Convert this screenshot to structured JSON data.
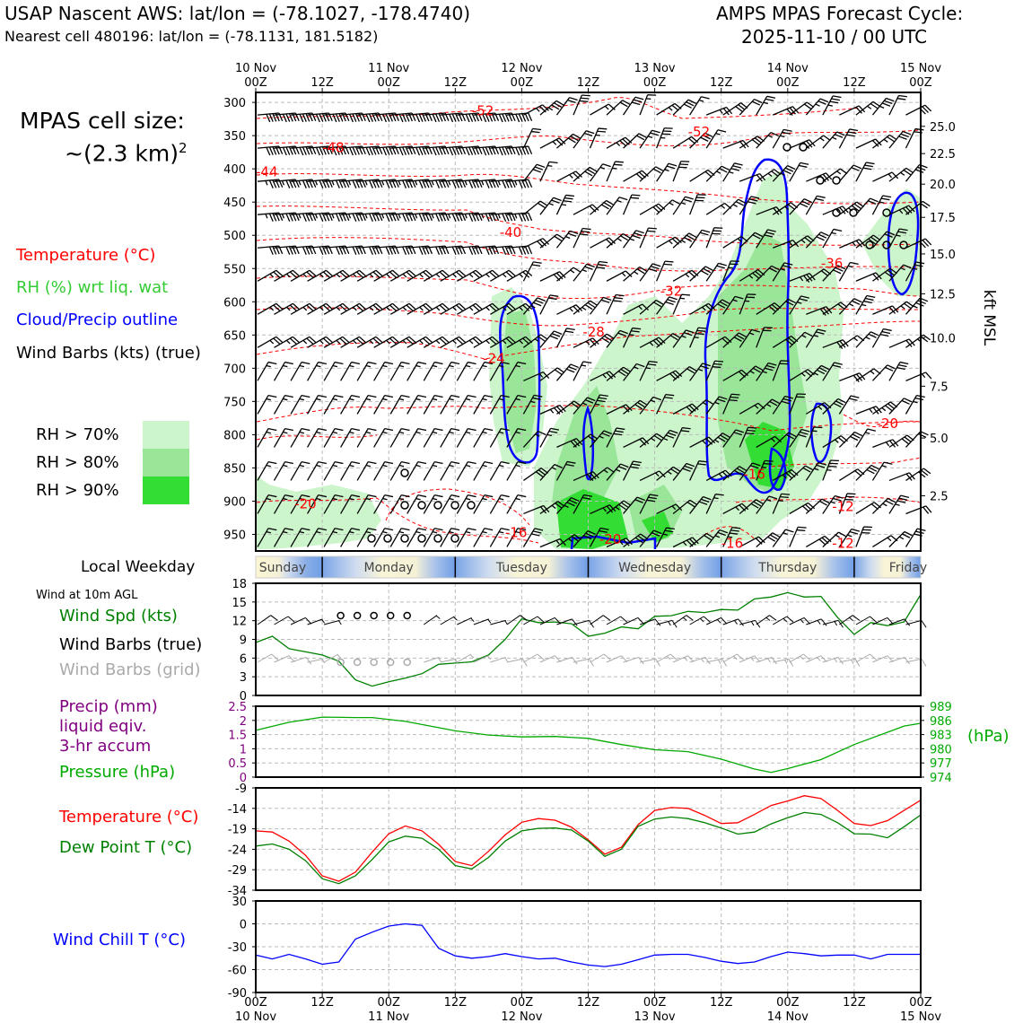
{
  "header": {
    "title": "USAP Nascent AWS: lat/lon = (-78.1027, -178.4740)",
    "subtitle": "Nearest cell 480196: lat/lon = (-78.1131, 181.5182)",
    "cycle_title": "AMPS MPAS Forecast Cycle:",
    "cycle_date": "2025-11-10 / 00 UTC"
  },
  "cell_size": {
    "label": "MPAS cell size:",
    "value": "~(2.3 km)",
    "exponent": "2"
  },
  "legend": {
    "temperature": "Temperature (°C)",
    "rh": "RH (%) wrt liq. wat",
    "cloud": "Cloud/Precip outline",
    "wind": "Wind Barbs (kts) (true)",
    "rh70": "RH > 70%",
    "rh80": "RH > 80%",
    "rh90": "RH > 90%"
  },
  "colors": {
    "temperature": "#ff0000",
    "rh_text": "#33cc33",
    "cloud": "#0000ff",
    "rh70": "#ccf5cc",
    "rh80": "#99e699",
    "rh90": "#33dd33",
    "wind_speed": "#008000",
    "pressure": "#00aa00",
    "precip": "#800080",
    "dew_point": "#008000",
    "wind_chill": "#0000ff",
    "grid_barbs": "#aaaaaa"
  },
  "weekday": {
    "label": "Local Weekday",
    "days": [
      "Sunday",
      "Monday",
      "Tuesday",
      "Wednesday",
      "Thursday",
      "Friday"
    ]
  },
  "surface_labels": {
    "wind_level": "Wind at 10m AGL",
    "wind_spd": "Wind Spd (kts)",
    "barbs_true": "Wind Barbs (true)",
    "barbs_grid": "Wind Barbs (grid)",
    "precip1": "Precip (mm)",
    "precip2": "liquid eqiv.",
    "precip3": "3-hr accum",
    "pressure": "Pressure (hPa)",
    "pressure_unit": "(hPa)",
    "temp": "Temperature (°C)",
    "dewpt": "Dew Point T (°C)",
    "windchill": "Wind Chill T (°C)"
  },
  "chart_data": [
    {
      "type": "time-height",
      "title": "Vertical profile",
      "time_ticks_top": [
        {
          "hour": 0,
          "l1": "10 Nov",
          "l2": "00Z"
        },
        {
          "hour": 12,
          "l1": "",
          "l2": "12Z"
        },
        {
          "hour": 24,
          "l1": "11 Nov",
          "l2": "00Z"
        },
        {
          "hour": 36,
          "l1": "",
          "l2": "12Z"
        },
        {
          "hour": 48,
          "l1": "12 Nov",
          "l2": "00Z"
        },
        {
          "hour": 60,
          "l1": "",
          "l2": "12Z"
        },
        {
          "hour": 72,
          "l1": "13 Nov",
          "l2": "00Z"
        },
        {
          "hour": 84,
          "l1": "",
          "l2": "12Z"
        },
        {
          "hour": 96,
          "l1": "14 Nov",
          "l2": "00Z"
        },
        {
          "hour": 108,
          "l1": "",
          "l2": "12Z"
        },
        {
          "hour": 120,
          "l1": "15 Nov",
          "l2": "00Z"
        }
      ],
      "xlim_hours": [
        0,
        120
      ],
      "ylim_hPa": [
        975,
        285
      ],
      "pressure_ticks": [
        300,
        350,
        400,
        450,
        500,
        550,
        600,
        650,
        700,
        750,
        800,
        850,
        900,
        950
      ],
      "kft_ticks": [
        {
          "p": 336,
          "label": "25.0"
        },
        {
          "p": 377,
          "label": "22.5"
        },
        {
          "p": 423,
          "label": "20.0"
        },
        {
          "p": 473,
          "label": "17.5"
        },
        {
          "p": 528,
          "label": "15.0"
        },
        {
          "p": 588,
          "label": "12.5"
        },
        {
          "p": 654,
          "label": "10.0"
        },
        {
          "p": 727,
          "label": "7.5"
        },
        {
          "p": 805,
          "label": "5.0"
        },
        {
          "p": 892,
          "label": "2.5"
        }
      ],
      "right_axis_label": "kft MSL",
      "temperature_labels": [
        {
          "t": 39,
          "p": 311,
          "label": "-52"
        },
        {
          "t": 78,
          "p": 343,
          "label": "-52"
        },
        {
          "t": 12,
          "p": 367,
          "label": "-48"
        },
        {
          "t": 0,
          "p": 403,
          "label": "-44"
        },
        {
          "t": 44,
          "p": 494,
          "label": "-40"
        },
        {
          "t": 102,
          "p": 541,
          "label": "-36"
        },
        {
          "t": 73,
          "p": 583,
          "label": "-32"
        },
        {
          "t": 59,
          "p": 644,
          "label": "-28"
        },
        {
          "t": 41,
          "p": 684,
          "label": "-24"
        },
        {
          "t": 88,
          "p": 858,
          "label": "-16"
        },
        {
          "t": 7,
          "p": 903,
          "label": "-20"
        },
        {
          "t": 45,
          "p": 946,
          "label": "-16"
        },
        {
          "t": 62,
          "p": 956,
          "label": "-20"
        },
        {
          "t": 84,
          "p": 962,
          "label": "-16"
        },
        {
          "t": 104,
          "p": 907,
          "label": "-12"
        },
        {
          "t": 104,
          "p": 962,
          "label": "-12"
        },
        {
          "t": 112,
          "p": 782,
          "label": "-20"
        }
      ]
    },
    {
      "type": "line",
      "title": "Wind Spd (kts)",
      "ylim": [
        0,
        18
      ],
      "yticks": [
        0,
        3,
        6,
        9,
        12,
        15,
        18
      ],
      "series": [
        {
          "name": "Wind Spd (kts)",
          "x": [
            0,
            3,
            6,
            9,
            12,
            15,
            18,
            21,
            24,
            27,
            30,
            33,
            36,
            39,
            42,
            45,
            48,
            51,
            54,
            57,
            60,
            63,
            66,
            69,
            72,
            75,
            78,
            81,
            84,
            87,
            90,
            93,
            96,
            99,
            102,
            105,
            108,
            111,
            114,
            117,
            120
          ],
          "values": [
            8.5,
            9.5,
            7.5,
            7,
            6.5,
            5.5,
            2.5,
            1.5,
            2.2,
            2.8,
            3.5,
            5,
            5.2,
            5.4,
            6.5,
            9,
            12.3,
            11.7,
            11.8,
            11.5,
            9.5,
            10,
            11,
            10.7,
            12.7,
            12.8,
            13.5,
            13.3,
            13.8,
            13.7,
            15.5,
            15.8,
            16.5,
            15.8,
            15.9,
            12.5,
            9.8,
            11.7,
            11.2,
            11.8,
            16.2
          ]
        }
      ]
    },
    {
      "type": "line",
      "title": "Pressure (hPa)",
      "precip_ticks": [
        0,
        0.5,
        1.0,
        1.5,
        2.0,
        2.5
      ],
      "pressure_ticks": [
        974,
        977,
        980,
        983,
        986,
        989
      ],
      "series": [
        {
          "name": "Pressure (hPa)",
          "x": [
            0,
            6,
            12,
            18,
            21,
            27,
            36,
            42,
            48,
            54,
            60,
            66,
            72,
            78,
            84,
            90,
            93,
            96,
            102,
            108,
            114,
            117,
            120
          ],
          "values": [
            983.9,
            985.6,
            986.7,
            986.6,
            986.6,
            985.8,
            983.8,
            982.9,
            982.5,
            982.6,
            982.2,
            980.9,
            979.8,
            979.4,
            977.8,
            975.7,
            975.0,
            975.8,
            977.7,
            980.9,
            983.5,
            984.8,
            985.4
          ]
        }
      ]
    },
    {
      "type": "line",
      "title": "Temperature / Dew Point (°C)",
      "ylim": [
        -34,
        -9
      ],
      "yticks": [
        -34,
        -29,
        -24,
        -19,
        -14,
        -9
      ],
      "series": [
        {
          "name": "Temperature (°C)",
          "x": [
            0,
            3,
            6,
            9,
            12,
            15,
            18,
            21,
            24,
            27,
            30,
            33,
            36,
            39,
            42,
            45,
            48,
            51,
            54,
            57,
            60,
            63,
            66,
            69,
            72,
            75,
            78,
            81,
            84,
            87,
            90,
            93,
            96,
            99,
            102,
            105,
            108,
            111,
            114,
            117,
            120
          ],
          "values": [
            -19.5,
            -19.8,
            -22,
            -25.5,
            -30.5,
            -31.8,
            -29.6,
            -24.7,
            -20.2,
            -18.3,
            -19.5,
            -22.8,
            -27,
            -28,
            -24.5,
            -20.5,
            -17.4,
            -16.5,
            -16.9,
            -18.6,
            -21.7,
            -25.2,
            -23.5,
            -18,
            -14.5,
            -13.8,
            -14,
            -15.7,
            -17.7,
            -17.5,
            -15.5,
            -13.3,
            -12.2,
            -10.9,
            -11.6,
            -14.5,
            -17.7,
            -18.2,
            -17,
            -14.5,
            -12
          ]
        },
        {
          "name": "Dew Point T (°C)",
          "x": [
            0,
            3,
            6,
            9,
            12,
            15,
            18,
            21,
            24,
            27,
            30,
            33,
            36,
            39,
            42,
            45,
            48,
            51,
            54,
            57,
            60,
            63,
            66,
            69,
            72,
            75,
            78,
            81,
            84,
            87,
            90,
            93,
            96,
            99,
            102,
            105,
            108,
            111,
            114,
            117,
            120
          ],
          "values": [
            -23.2,
            -22.7,
            -24,
            -26.8,
            -31.2,
            -32.4,
            -30.5,
            -26.5,
            -22.2,
            -20.8,
            -21.3,
            -24,
            -28,
            -28.8,
            -26,
            -22,
            -19.5,
            -18.9,
            -18.8,
            -19.3,
            -22,
            -25.7,
            -24,
            -18.4,
            -16.6,
            -16.1,
            -16.5,
            -17.5,
            -18.8,
            -20.3,
            -19.8,
            -17.8,
            -16.3,
            -15,
            -15.5,
            -17.5,
            -20.2,
            -20.3,
            -21.2,
            -18.5,
            -15.6
          ]
        }
      ]
    },
    {
      "type": "line",
      "title": "Wind Chill T (°C)",
      "ylim": [
        -90,
        30
      ],
      "yticks": [
        -90,
        -60,
        -30,
        0,
        30
      ],
      "series": [
        {
          "name": "Wind Chill T (°C)",
          "x": [
            0,
            3,
            6,
            9,
            12,
            15,
            18,
            21,
            24,
            27,
            30,
            33,
            36,
            39,
            42,
            45,
            48,
            51,
            54,
            57,
            60,
            63,
            66,
            69,
            72,
            75,
            78,
            81,
            84,
            87,
            90,
            93,
            96,
            99,
            102,
            105,
            108,
            111,
            114,
            117,
            120
          ],
          "values": [
            -41,
            -46,
            -40,
            -46,
            -53,
            -50,
            -20,
            -11,
            -3,
            0,
            -2,
            -32,
            -42,
            -45,
            -43,
            -39,
            -43,
            -46,
            -45,
            -50,
            -54,
            -56,
            -53,
            -47,
            -41,
            -40,
            -40,
            -44,
            -49,
            -52,
            -50,
            -43,
            -37,
            -39,
            -42,
            -41,
            -41,
            -46,
            -40,
            -40,
            -40
          ]
        }
      ]
    }
  ]
}
